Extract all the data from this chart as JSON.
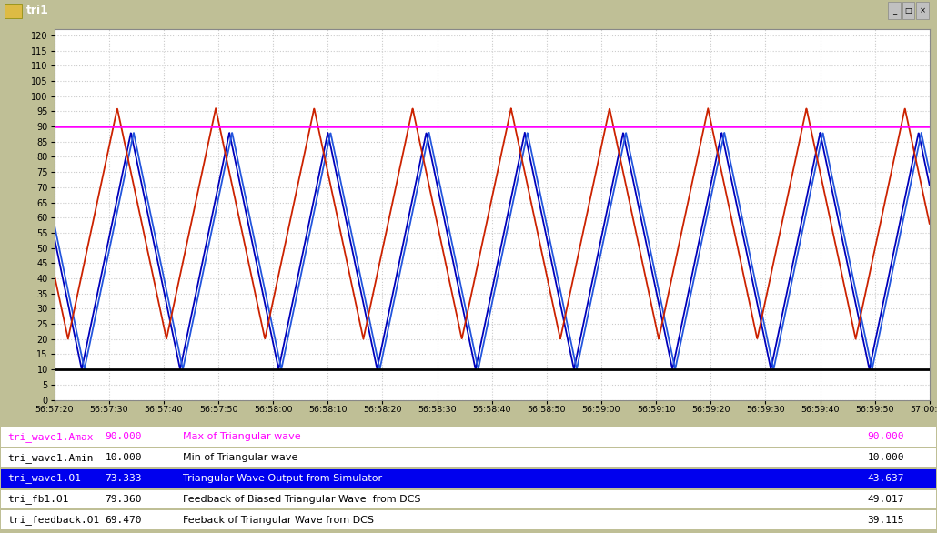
{
  "title": "tri1",
  "bg_color": "#bfbf96",
  "plot_bg": "#ffffff",
  "ylim": [
    0,
    122
  ],
  "yticks": [
    0,
    5,
    10,
    15,
    20,
    25,
    30,
    35,
    40,
    45,
    50,
    55,
    60,
    65,
    70,
    75,
    80,
    85,
    90,
    95,
    100,
    105,
    110,
    115,
    120
  ],
  "x_tick_labels": [
    "56:57:20",
    "56:57:30",
    "56:57:40",
    "56:57:50",
    "56:58:00",
    "56:58:10",
    "56:58:20",
    "56:58:30",
    "56:58:40",
    "56:58:50",
    "56:59:00",
    "56:59:10",
    "56:59:20",
    "56:59:30",
    "56:59:40",
    "56:59:50",
    "57:00:00"
  ],
  "amax_line": 90.0,
  "amin_line": 10.0,
  "amax_color": "#ff00ff",
  "amin_color": "#000000",
  "red_wave_min": 20.0,
  "red_wave_max": 96.0,
  "blue1_wave_min": 10.0,
  "blue1_wave_max": 88.0,
  "blue2_wave_min": 10.0,
  "blue2_wave_max": 88.0,
  "red_color": "#cc2200",
  "blue1_color": "#0000bb",
  "blue2_color": "#2255dd",
  "period": 18.0,
  "red_phase": 2.5,
  "blue1_phase": 5.0,
  "blue2_phase": 5.5,
  "legend_rows": [
    {
      "name": "tri_wave1.Amax",
      "val1": "90.000",
      "desc": "Max of Triangular wave",
      "val2": "90.000",
      "bg": "#ffffff",
      "fg": "#ff00ff"
    },
    {
      "name": "tri_wave1.Amin",
      "val1": "10.000",
      "desc": "Min of Triangular wave",
      "val2": "10.000",
      "bg": "#ffffff",
      "fg": "#000000"
    },
    {
      "name": "tri_wave1.O1",
      "val1": "73.333",
      "desc": "Triangular Wave Output from Simulator",
      "val2": "43.637",
      "bg": "#0000ee",
      "fg": "#ffffff"
    },
    {
      "name": "tri_fb1.O1",
      "val1": "79.360",
      "desc": "Feedback of Biased Triangular Wave  from DCS",
      "val2": "49.017",
      "bg": "#ffffff",
      "fg": "#000000"
    },
    {
      "name": "tri_feedback.O1",
      "val1": "69.470",
      "desc": "Feeback of Triangular Wave from DCS",
      "val2": "39.115",
      "bg": "#ffffff",
      "fg": "#000000"
    }
  ],
  "window_title_bg": "#a07800",
  "window_title_text": "#ffffff",
  "grid_color": "#cccccc",
  "grid_style": ":"
}
